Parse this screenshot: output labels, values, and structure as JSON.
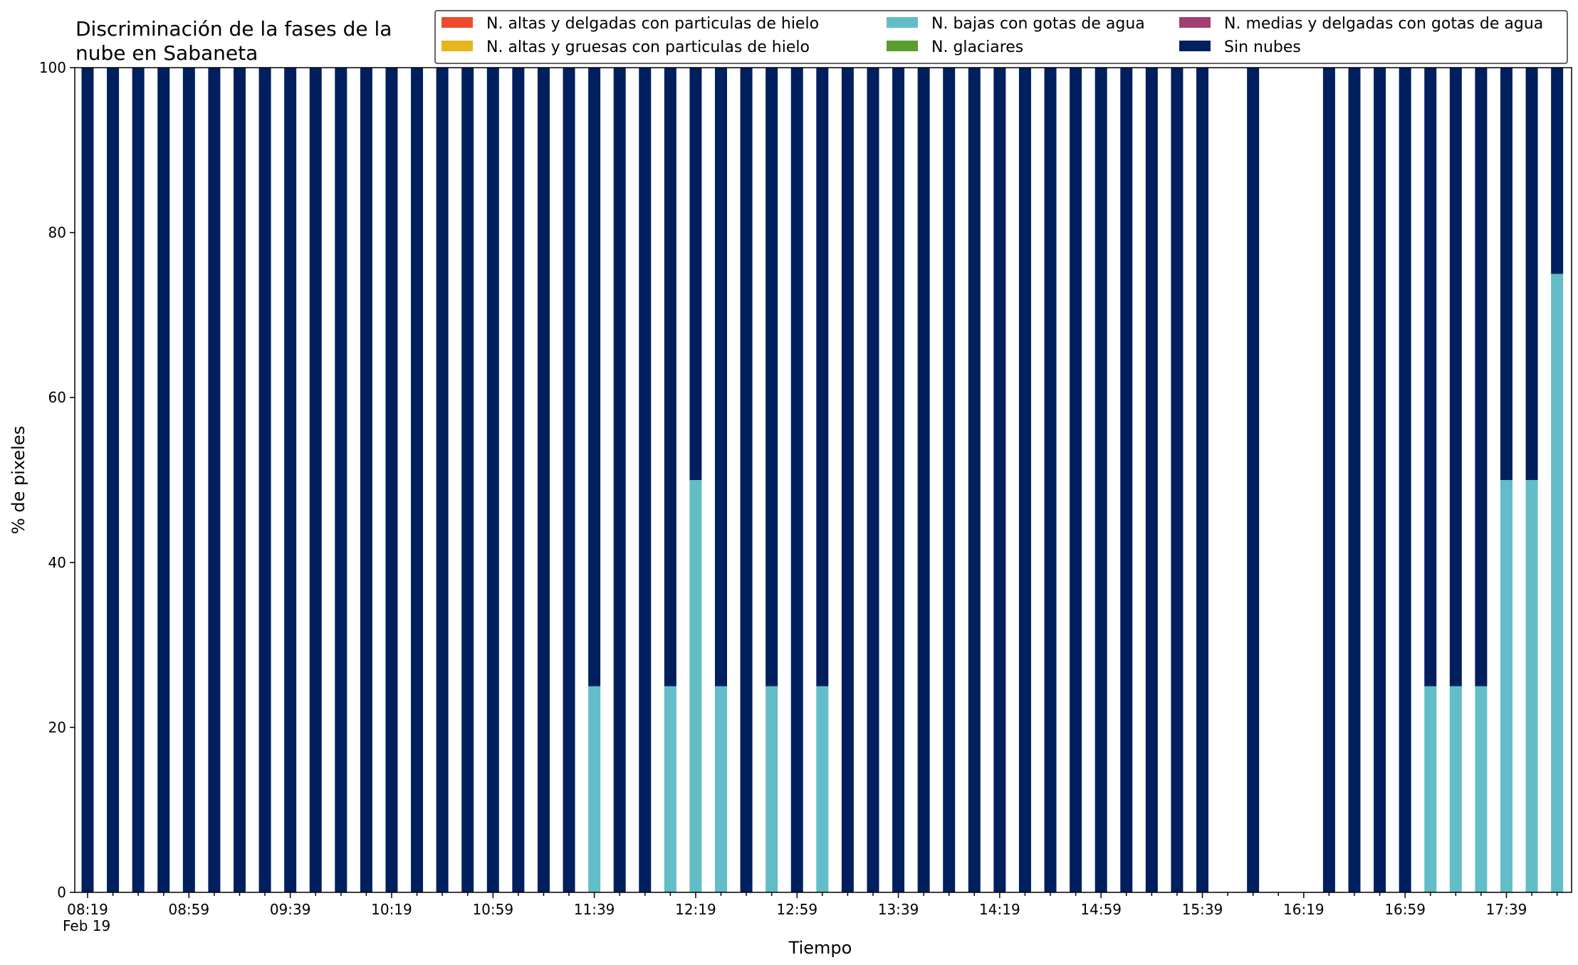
{
  "chart_data": {
    "type": "bar",
    "stacked": true,
    "title_lines": [
      "Discriminación de la fases de la",
      "nube en Sabaneta"
    ],
    "xlabel": "Tiempo",
    "ylabel": "% de pixeles",
    "ylim": [
      0,
      100
    ],
    "yticks": [
      0,
      20,
      40,
      60,
      80,
      100
    ],
    "grid": false,
    "legend_position": "top-right",
    "x_interval_minutes": 10,
    "x_labels": [
      "08:19",
      "08:59",
      "09:39",
      "10:19",
      "10:59",
      "11:39",
      "12:19",
      "12:59",
      "13:39",
      "14:19",
      "14:59",
      "15:39",
      "16:19",
      "16:59",
      "17:39"
    ],
    "x_date_label": "Feb 19",
    "x": [
      "08:19",
      "08:29",
      "08:39",
      "08:49",
      "08:59",
      "09:09",
      "09:19",
      "09:29",
      "09:39",
      "09:49",
      "09:59",
      "10:09",
      "10:19",
      "10:29",
      "10:39",
      "10:49",
      "10:59",
      "11:09",
      "11:19",
      "11:29",
      "11:39",
      "11:49",
      "11:59",
      "12:09",
      "12:19",
      "12:29",
      "12:39",
      "12:49",
      "12:59",
      "13:09",
      "13:19",
      "13:29",
      "13:39",
      "13:49",
      "13:59",
      "14:09",
      "14:19",
      "14:29",
      "14:39",
      "14:49",
      "14:59",
      "15:09",
      "15:19",
      "15:29",
      "15:39",
      "15:49",
      "15:59",
      "16:09",
      "16:19",
      "16:29",
      "16:39",
      "16:49",
      "16:59",
      "17:09",
      "17:19",
      "17:29",
      "17:39",
      "17:49",
      "17:59"
    ],
    "series": [
      {
        "name": "N. altas y delgadas con particulas de hielo",
        "color": "#ee4b2b",
        "values": [
          0,
          0,
          0,
          0,
          0,
          0,
          0,
          0,
          0,
          0,
          0,
          0,
          0,
          0,
          0,
          0,
          0,
          0,
          0,
          0,
          0,
          0,
          0,
          0,
          0,
          0,
          0,
          0,
          0,
          0,
          0,
          0,
          0,
          0,
          0,
          0,
          0,
          0,
          0,
          0,
          0,
          0,
          0,
          0,
          0,
          null,
          0,
          null,
          null,
          0,
          0,
          0,
          0,
          0,
          0,
          0,
          0,
          0,
          0
        ]
      },
      {
        "name": "N. altas y gruesas con particulas de hielo",
        "color": "#e6b71c",
        "values": [
          0,
          0,
          0,
          0,
          0,
          0,
          0,
          0,
          0,
          0,
          0,
          0,
          0,
          0,
          0,
          0,
          0,
          0,
          0,
          0,
          0,
          0,
          0,
          0,
          0,
          0,
          0,
          0,
          0,
          0,
          0,
          0,
          0,
          0,
          0,
          0,
          0,
          0,
          0,
          0,
          0,
          0,
          0,
          0,
          0,
          null,
          0,
          null,
          null,
          0,
          0,
          0,
          0,
          0,
          0,
          0,
          0,
          0,
          0
        ]
      },
      {
        "name": "N. bajas con gotas de agua",
        "color": "#62bdc8",
        "values": [
          0,
          0,
          0,
          0,
          0,
          0,
          0,
          0,
          0,
          0,
          0,
          0,
          0,
          0,
          0,
          0,
          0,
          0,
          0,
          0,
          25,
          0,
          0,
          25,
          50,
          25,
          0,
          25,
          0,
          25,
          0,
          0,
          0,
          0,
          0,
          0,
          0,
          0,
          0,
          0,
          0,
          0,
          0,
          0,
          0,
          null,
          0,
          null,
          null,
          0,
          0,
          0,
          0,
          25,
          25,
          25,
          50,
          50,
          75
        ]
      },
      {
        "name": "N. glaciares",
        "color": "#5a9e2f",
        "values": [
          0,
          0,
          0,
          0,
          0,
          0,
          0,
          0,
          0,
          0,
          0,
          0,
          0,
          0,
          0,
          0,
          0,
          0,
          0,
          0,
          0,
          0,
          0,
          0,
          0,
          0,
          0,
          0,
          0,
          0,
          0,
          0,
          0,
          0,
          0,
          0,
          0,
          0,
          0,
          0,
          0,
          0,
          0,
          0,
          0,
          null,
          0,
          null,
          null,
          0,
          0,
          0,
          0,
          0,
          0,
          0,
          0,
          0,
          0
        ]
      },
      {
        "name": "N. medias y delgadas con gotas de agua",
        "color": "#a23f73",
        "values": [
          0,
          0,
          0,
          0,
          0,
          0,
          0,
          0,
          0,
          0,
          0,
          0,
          0,
          0,
          0,
          0,
          0,
          0,
          0,
          0,
          0,
          0,
          0,
          0,
          0,
          0,
          0,
          0,
          0,
          0,
          0,
          0,
          0,
          0,
          0,
          0,
          0,
          0,
          0,
          0,
          0,
          0,
          0,
          0,
          0,
          null,
          0,
          null,
          null,
          0,
          0,
          0,
          0,
          0,
          0,
          0,
          0,
          0,
          0
        ]
      },
      {
        "name": "Sin nubes",
        "color": "#001f5f",
        "values": [
          100,
          100,
          100,
          100,
          100,
          100,
          100,
          100,
          100,
          100,
          100,
          100,
          100,
          100,
          100,
          100,
          100,
          100,
          100,
          100,
          75,
          100,
          100,
          75,
          50,
          75,
          100,
          75,
          100,
          75,
          100,
          100,
          100,
          100,
          100,
          100,
          100,
          100,
          100,
          100,
          100,
          100,
          100,
          100,
          100,
          null,
          100,
          null,
          null,
          100,
          100,
          100,
          100,
          75,
          75,
          75,
          50,
          50,
          25
        ]
      }
    ]
  }
}
